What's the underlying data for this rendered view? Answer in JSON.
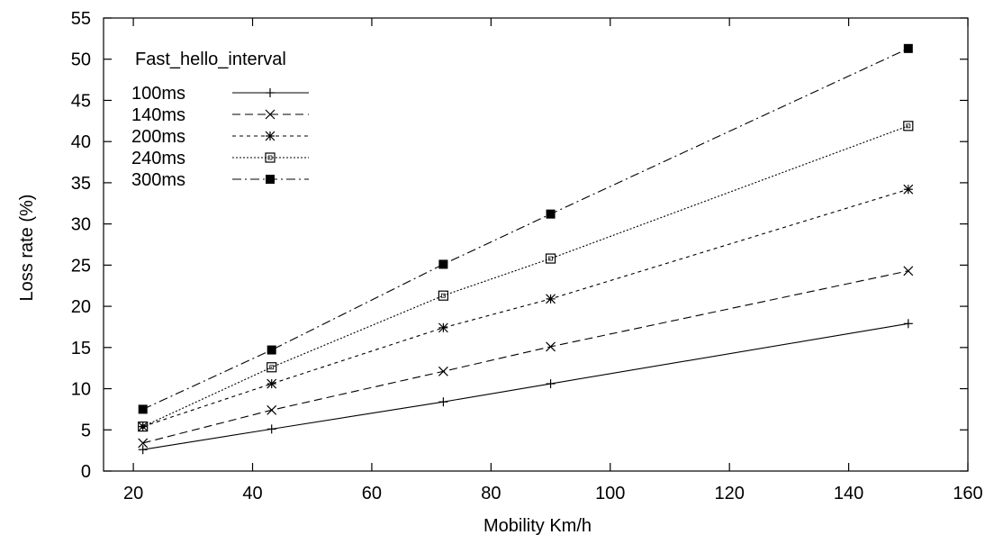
{
  "chart_data": {
    "type": "line",
    "title": "",
    "xlabel": "Mobility Km/h",
    "ylabel": "Loss rate (%)",
    "xlim": [
      15,
      160
    ],
    "ylim": [
      0,
      55
    ],
    "xticks": [
      20,
      40,
      60,
      80,
      100,
      120,
      140,
      160
    ],
    "yticks": [
      0,
      5,
      10,
      15,
      20,
      25,
      30,
      35,
      40,
      45,
      50,
      55
    ],
    "grid": false,
    "legend": {
      "title": "Fast_hello_interval",
      "position": "top-left"
    },
    "x": [
      21.6,
      43.2,
      72,
      90,
      150
    ],
    "series": [
      {
        "name": "100ms",
        "marker": "plus",
        "dash": "",
        "values": [
          2.6,
          5.1,
          8.4,
          10.6,
          17.9
        ]
      },
      {
        "name": "140ms",
        "marker": "x",
        "dash": "9 5",
        "values": [
          3.4,
          7.4,
          12.1,
          15.1,
          24.3
        ]
      },
      {
        "name": "200ms",
        "marker": "star",
        "dash": "4 4",
        "values": [
          5.4,
          10.6,
          17.4,
          20.9,
          34.2
        ]
      },
      {
        "name": "240ms",
        "marker": "open-square",
        "dash": "2 2",
        "values": [
          5.4,
          12.6,
          21.3,
          25.8,
          41.9
        ]
      },
      {
        "name": "300ms",
        "marker": "filled-square",
        "dash": "10 4 2 4",
        "values": [
          7.5,
          14.7,
          25.1,
          31.2,
          51.3
        ]
      }
    ]
  }
}
